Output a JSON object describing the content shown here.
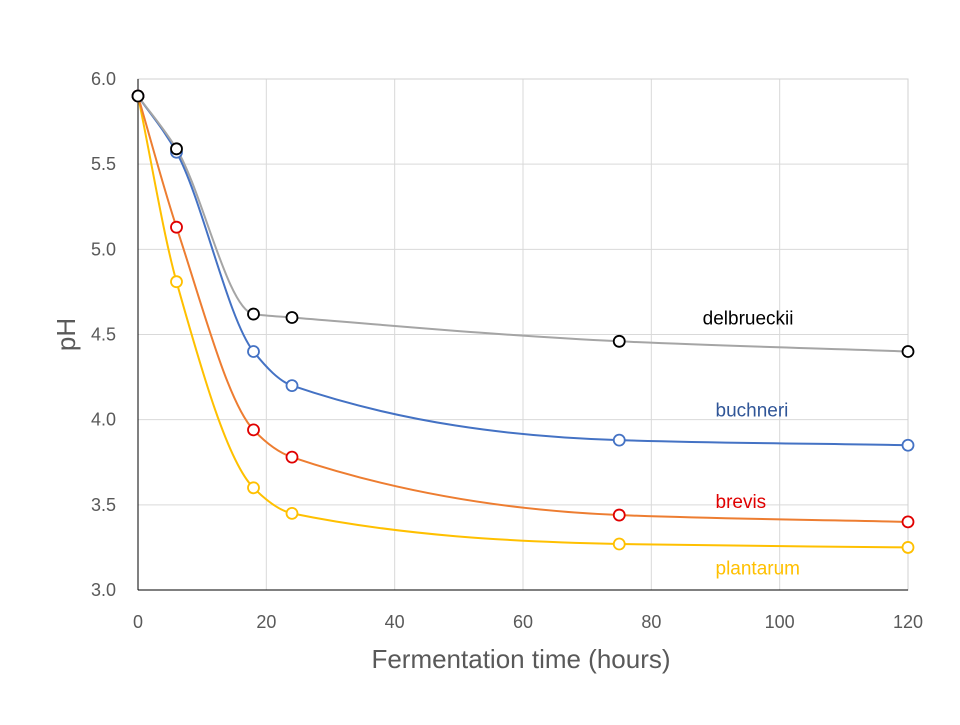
{
  "chart_data": {
    "type": "line",
    "title": "",
    "xlabel": "Fermentation time (hours)",
    "ylabel": "pH",
    "xlim": [
      0,
      120
    ],
    "ylim": [
      3.0,
      6.0
    ],
    "x_ticks": [
      0,
      20,
      40,
      60,
      80,
      100,
      120
    ],
    "y_ticks": [
      3.0,
      3.5,
      4.0,
      4.5,
      5.0,
      5.5,
      6.0
    ],
    "x_tick_labels": [
      "0",
      "20",
      "40",
      "60",
      "80",
      "100",
      "120"
    ],
    "y_tick_labels": [
      "3.0",
      "3.5",
      "4.0",
      "4.5",
      "5.0",
      "5.5",
      "6.0"
    ],
    "grid": true,
    "legend": "inline labels",
    "x": [
      0,
      6,
      18,
      24,
      75,
      120
    ],
    "series": [
      {
        "name": "delbrueckii",
        "values": [
          5.9,
          5.59,
          4.62,
          4.6,
          4.46,
          4.4
        ],
        "line_color": "#A5A5A5",
        "marker_color": "#000000",
        "label_color": "#000000",
        "label_at": [
          88,
          4.56
        ]
      },
      {
        "name": "buchneri",
        "values": [
          5.9,
          5.57,
          4.4,
          4.2,
          3.88,
          3.85
        ],
        "line_color": "#4472C4",
        "marker_color": "#4472C4",
        "label_color": "#2F5597",
        "label_at": [
          90,
          4.02
        ]
      },
      {
        "name": "brevis",
        "values": [
          5.9,
          5.13,
          3.94,
          3.78,
          3.44,
          3.4
        ],
        "line_color": "#ED7D31",
        "marker_color": "#E00000",
        "label_color": "#E00000",
        "label_at": [
          90,
          3.48
        ]
      },
      {
        "name": "plantarum",
        "values": [
          5.9,
          4.81,
          3.6,
          3.45,
          3.27,
          3.25
        ],
        "line_color": "#FFC000",
        "marker_color": "#FFC000",
        "label_color": "#FFC000",
        "label_at": [
          90,
          3.09
        ]
      }
    ]
  }
}
